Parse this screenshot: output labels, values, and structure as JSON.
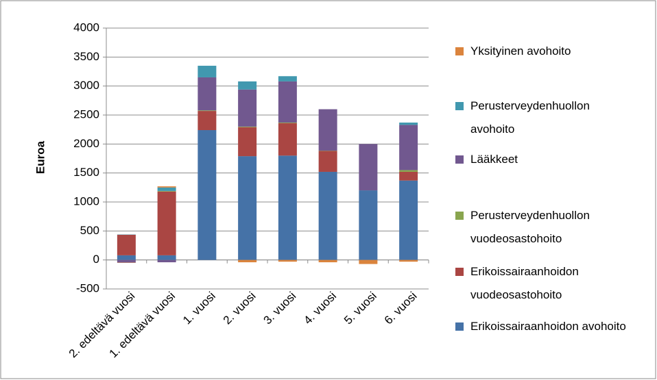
{
  "chart_data": {
    "type": "stacked_bar",
    "y_label": "Euroa",
    "categories": [
      "2. edeltävä vuosi",
      "1. edeltävä vuosi",
      "1. vuosi",
      "2. vuosi",
      "3. vuosi",
      "4. vuosi",
      "5. vuosi",
      "6. vuosi"
    ],
    "series": [
      {
        "name": "Erikoissairaanhoidon avohoito",
        "color": "#4572a7",
        "values": [
          80,
          80,
          2240,
          1790,
          1800,
          1520,
          1200,
          1370
        ]
      },
      {
        "name": "Erikoissairaanhoidon vuodeosastohoito",
        "color": "#aa4643",
        "values": [
          355,
          1100,
          330,
          500,
          560,
          360,
          0,
          150
        ]
      },
      {
        "name": "Perusterveydenhuollon vuodeosastohoito",
        "color": "#89a54e",
        "values": [
          0,
          10,
          10,
          10,
          10,
          5,
          0,
          30
        ]
      },
      {
        "name": "Lääkkeet",
        "color": "#71588f",
        "values": [
          -45,
          -40,
          570,
          640,
          710,
          715,
          800,
          780
        ]
      },
      {
        "name": "Perusterveydenhuollon avohoito",
        "color": "#4198af",
        "values": [
          5,
          60,
          200,
          140,
          90,
          0,
          0,
          40
        ]
      },
      {
        "name": "Yksityinen avohoito",
        "color": "#db843d",
        "values": [
          -5,
          20,
          0,
          -40,
          -30,
          -40,
          -70,
          -30
        ]
      }
    ],
    "ylim": [
      -500,
      4000
    ],
    "yticks": [
      -500,
      0,
      500,
      1000,
      1500,
      2000,
      2500,
      3000,
      3500,
      4000
    ],
    "grid": true
  }
}
